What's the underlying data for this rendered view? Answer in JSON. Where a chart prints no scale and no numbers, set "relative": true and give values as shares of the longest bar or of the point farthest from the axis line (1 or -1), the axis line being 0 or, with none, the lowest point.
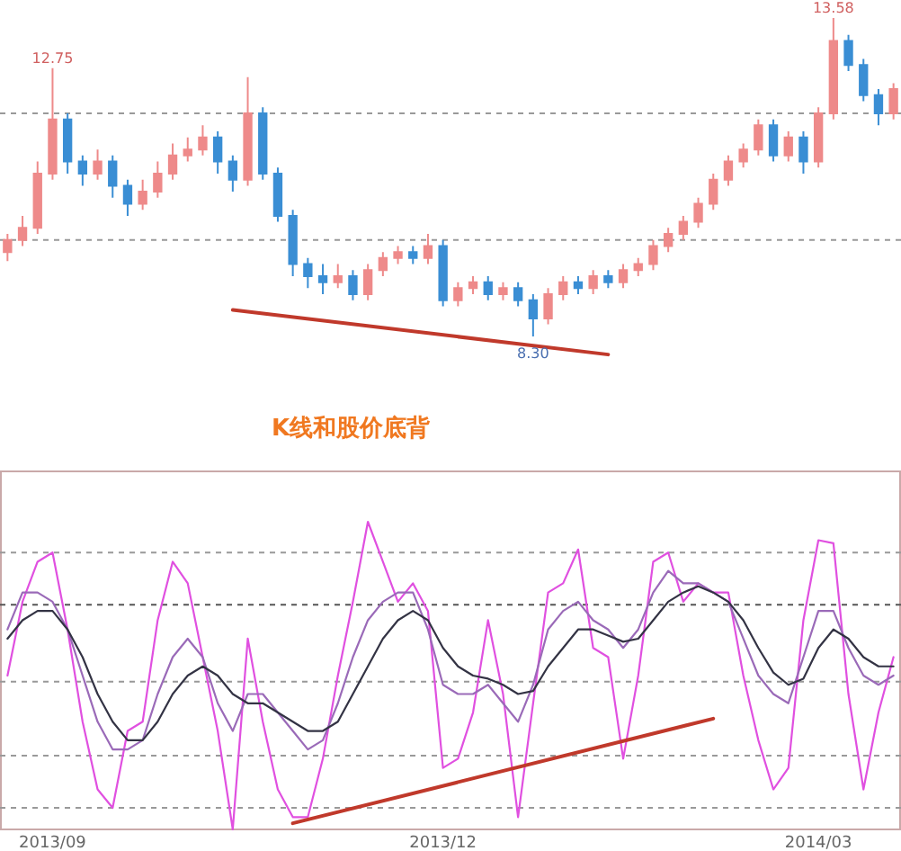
{
  "chart_data": [
    {
      "type": "candlestick",
      "categories": [
        null,
        null,
        null,
        null,
        null,
        null,
        null,
        null,
        null,
        null,
        null,
        null,
        null,
        null,
        null,
        null,
        null,
        null,
        null,
        null,
        null,
        null,
        null,
        null,
        null,
        null,
        null,
        null,
        null,
        null,
        null,
        null,
        null,
        null,
        null,
        null,
        null,
        null,
        null,
        null,
        null,
        null,
        null,
        null,
        null,
        null,
        null,
        null,
        null,
        null,
        null,
        null,
        null,
        null,
        null,
        null,
        null,
        null,
        null,
        null
      ],
      "ohlc": [
        [
          9.7,
          10.0,
          9.55,
          9.9
        ],
        [
          9.9,
          10.3,
          9.8,
          10.1
        ],
        [
          10.1,
          11.2,
          10.0,
          11.0
        ],
        [
          11.0,
          12.75,
          10.9,
          11.9
        ],
        [
          11.9,
          12.0,
          11.0,
          11.2
        ],
        [
          11.2,
          11.3,
          10.8,
          11.0
        ],
        [
          11.0,
          11.4,
          10.9,
          11.2
        ],
        [
          11.2,
          11.3,
          10.6,
          10.8
        ],
        [
          10.8,
          10.9,
          10.3,
          10.5
        ],
        [
          10.5,
          10.9,
          10.4,
          10.7
        ],
        [
          10.7,
          11.2,
          10.6,
          11.0
        ],
        [
          11.0,
          11.5,
          10.9,
          11.3
        ],
        [
          11.3,
          11.6,
          11.2,
          11.4
        ],
        [
          11.4,
          11.8,
          11.3,
          11.6
        ],
        [
          11.6,
          11.7,
          11.0,
          11.2
        ],
        [
          11.2,
          11.3,
          10.7,
          10.9
        ],
        [
          10.9,
          12.6,
          10.8,
          12.0
        ],
        [
          12.0,
          12.1,
          10.9,
          11.0
        ],
        [
          11.0,
          11.1,
          10.2,
          10.3
        ],
        [
          10.3,
          10.4,
          9.3,
          9.5
        ],
        [
          9.5,
          9.6,
          9.1,
          9.3
        ],
        [
          9.3,
          9.5,
          9.0,
          9.2
        ],
        [
          9.2,
          9.5,
          9.1,
          9.3
        ],
        [
          9.3,
          9.4,
          8.9,
          9.0
        ],
        [
          9.0,
          9.5,
          8.9,
          9.4
        ],
        [
          9.4,
          9.7,
          9.3,
          9.6
        ],
        [
          9.6,
          9.8,
          9.5,
          9.7
        ],
        [
          9.7,
          9.8,
          9.5,
          9.6
        ],
        [
          9.6,
          10.0,
          9.5,
          9.8
        ],
        [
          9.8,
          9.9,
          8.8,
          8.9
        ],
        [
          8.9,
          9.2,
          8.8,
          9.1
        ],
        [
          9.1,
          9.3,
          9.0,
          9.2
        ],
        [
          9.2,
          9.3,
          8.9,
          9.0
        ],
        [
          9.0,
          9.2,
          8.9,
          9.1
        ],
        [
          9.1,
          9.2,
          8.8,
          8.9
        ],
        [
          8.9,
          9.0,
          8.3,
          8.6
        ],
        [
          8.6,
          9.1,
          8.5,
          9.0
        ],
        [
          9.0,
          9.3,
          8.9,
          9.2
        ],
        [
          9.2,
          9.3,
          9.0,
          9.1
        ],
        [
          9.1,
          9.4,
          9.0,
          9.3
        ],
        [
          9.3,
          9.4,
          9.1,
          9.2
        ],
        [
          9.2,
          9.5,
          9.1,
          9.4
        ],
        [
          9.4,
          9.6,
          9.3,
          9.5
        ],
        [
          9.5,
          9.9,
          9.4,
          9.8
        ],
        [
          9.8,
          10.1,
          9.7,
          10.0
        ],
        [
          10.0,
          10.3,
          9.9,
          10.2
        ],
        [
          10.2,
          10.6,
          10.1,
          10.5
        ],
        [
          10.5,
          11.0,
          10.4,
          10.9
        ],
        [
          10.9,
          11.3,
          10.8,
          11.2
        ],
        [
          11.2,
          11.5,
          11.1,
          11.4
        ],
        [
          11.4,
          11.9,
          11.3,
          11.8
        ],
        [
          11.8,
          11.9,
          11.2,
          11.3
        ],
        [
          11.3,
          11.7,
          11.2,
          11.6
        ],
        [
          11.6,
          11.7,
          11.0,
          11.2
        ],
        [
          11.2,
          12.1,
          11.1,
          12.0
        ],
        [
          12.0,
          13.58,
          11.9,
          13.2
        ],
        [
          13.2,
          13.3,
          12.7,
          12.8
        ],
        [
          12.8,
          12.9,
          12.2,
          12.3
        ],
        [
          12.3,
          12.4,
          11.8,
          12.0
        ],
        [
          12.0,
          12.5,
          11.9,
          12.4
        ]
      ],
      "series": [
        {
          "type": "line",
          "color": "#c0392b",
          "values": [
            null,
            null,
            null,
            null,
            null,
            null,
            null,
            null,
            null,
            null,
            null,
            null,
            null,
            null,
            null,
            8.74,
            null,
            null,
            null,
            null,
            null,
            null,
            null,
            null,
            null,
            null,
            null,
            null,
            null,
            null,
            null,
            null,
            null,
            null,
            null,
            null,
            null,
            null,
            null,
            null,
            8.0,
            null,
            null,
            null,
            null,
            null,
            null,
            null,
            null,
            null,
            null,
            null,
            null,
            null,
            null,
            null,
            null,
            null,
            null,
            null
          ]
        }
      ],
      "ref_lines": [
        {
          "axis": "y",
          "value": 12.0,
          "color": "#999999",
          "line_style": "dashed"
        },
        {
          "axis": "y",
          "value": 9.9,
          "color": "#999999",
          "line_style": "dashed"
        }
      ],
      "annotations": [
        {
          "text": "12.75",
          "y": 12.75
        },
        {
          "text": "13.58",
          "y": 13.58
        },
        {
          "text": "8.30",
          "y": 8.3
        }
      ]
    },
    {
      "type": "line",
      "title": "K线和股价底背",
      "relative": true,
      "categories": [
        null,
        null,
        null,
        "2013/09",
        null,
        null,
        null,
        null,
        null,
        null,
        null,
        null,
        null,
        null,
        null,
        null,
        null,
        null,
        null,
        null,
        null,
        null,
        null,
        null,
        null,
        null,
        null,
        null,
        null,
        "2013/12",
        null,
        null,
        null,
        null,
        null,
        null,
        null,
        null,
        null,
        null,
        null,
        null,
        null,
        null,
        null,
        null,
        null,
        null,
        null,
        null,
        null,
        null,
        null,
        null,
        "2014/03",
        null,
        null,
        null,
        null,
        null
      ],
      "series": [
        {
          "color": "#e050e0",
          "values": [
            0.5,
            0.74,
            0.87,
            0.9,
            0.65,
            0.35,
            0.13,
            0.07,
            0.32,
            0.35,
            0.68,
            0.87,
            0.8,
            0.56,
            0.32,
            0,
            0.62,
            0.35,
            0.13,
            0.04,
            0.04,
            0.23,
            0.5,
            0.74,
            1,
            0.87,
            0.74,
            0.8,
            0.71,
            0.2,
            0.23,
            0.38,
            0.68,
            0.44,
            0.04,
            0.41,
            0.77,
            0.8,
            0.91,
            0.59,
            0.56,
            0.23,
            0.5,
            0.87,
            0.9,
            0.74,
            0.8,
            0.77,
            0.77,
            0.5,
            0.29,
            0.13,
            0.2,
            0.68,
            0.94,
            0.93,
            0.44,
            0.13,
            0.38,
            0.56
          ]
        },
        {
          "color": "#9a6ab8",
          "values": [
            0.65,
            0.77,
            0.77,
            0.74,
            0.65,
            0.5,
            0.35,
            0.26,
            0.26,
            0.29,
            0.44,
            0.56,
            0.62,
            0.56,
            0.41,
            0.32,
            0.44,
            0.44,
            0.38,
            0.32,
            0.26,
            0.29,
            0.41,
            0.56,
            0.68,
            0.74,
            0.77,
            0.77,
            0.65,
            0.47,
            0.44,
            0.44,
            0.47,
            0.41,
            0.35,
            0.47,
            0.65,
            0.71,
            0.74,
            0.68,
            0.65,
            0.59,
            0.65,
            0.77,
            0.84,
            0.8,
            0.8,
            0.77,
            0.74,
            0.62,
            0.5,
            0.44,
            0.41,
            0.56,
            0.71,
            0.71,
            0.59,
            0.5,
            0.47,
            0.5
          ]
        },
        {
          "color": "#333344",
          "values": [
            0.62,
            0.68,
            0.71,
            0.71,
            0.65,
            0.56,
            0.44,
            0.35,
            0.29,
            0.29,
            0.35,
            0.44,
            0.5,
            0.53,
            0.5,
            0.44,
            0.41,
            0.41,
            0.38,
            0.35,
            0.32,
            0.32,
            0.35,
            0.44,
            0.53,
            0.62,
            0.68,
            0.71,
            0.68,
            0.59,
            0.53,
            0.5,
            0.49,
            0.47,
            0.44,
            0.45,
            0.53,
            0.59,
            0.65,
            0.65,
            0.63,
            0.61,
            0.62,
            0.68,
            0.74,
            0.77,
            0.79,
            0.77,
            0.74,
            0.68,
            0.59,
            0.51,
            0.47,
            0.49,
            0.59,
            0.65,
            0.62,
            0.56,
            0.53,
            0.53
          ]
        },
        {
          "color": "#c0392b",
          "values": [
            null,
            null,
            null,
            null,
            null,
            null,
            null,
            null,
            null,
            null,
            null,
            null,
            null,
            null,
            null,
            null,
            null,
            null,
            null,
            0.02,
            null,
            null,
            null,
            null,
            null,
            null,
            null,
            null,
            null,
            null,
            null,
            null,
            null,
            null,
            null,
            null,
            null,
            null,
            null,
            null,
            null,
            null,
            null,
            null,
            null,
            null,
            null,
            0.36,
            null,
            null,
            null,
            null,
            null,
            null,
            null,
            null,
            null,
            null,
            null,
            null
          ]
        }
      ],
      "ref_lines": [
        {
          "axis": "y",
          "value": 0.9,
          "color": "#999999",
          "line_style": "dashed"
        },
        {
          "axis": "y",
          "value": 0.73,
          "color": "#555555",
          "line_style": "dashed"
        },
        {
          "axis": "y",
          "value": 0.48,
          "color": "#999999",
          "line_style": "dashed"
        },
        {
          "axis": "y",
          "value": 0.24,
          "color": "#999999",
          "line_style": "dashed"
        },
        {
          "axis": "y",
          "value": 0.07,
          "color": "#999999",
          "line_style": "dashed"
        }
      ]
    }
  ]
}
